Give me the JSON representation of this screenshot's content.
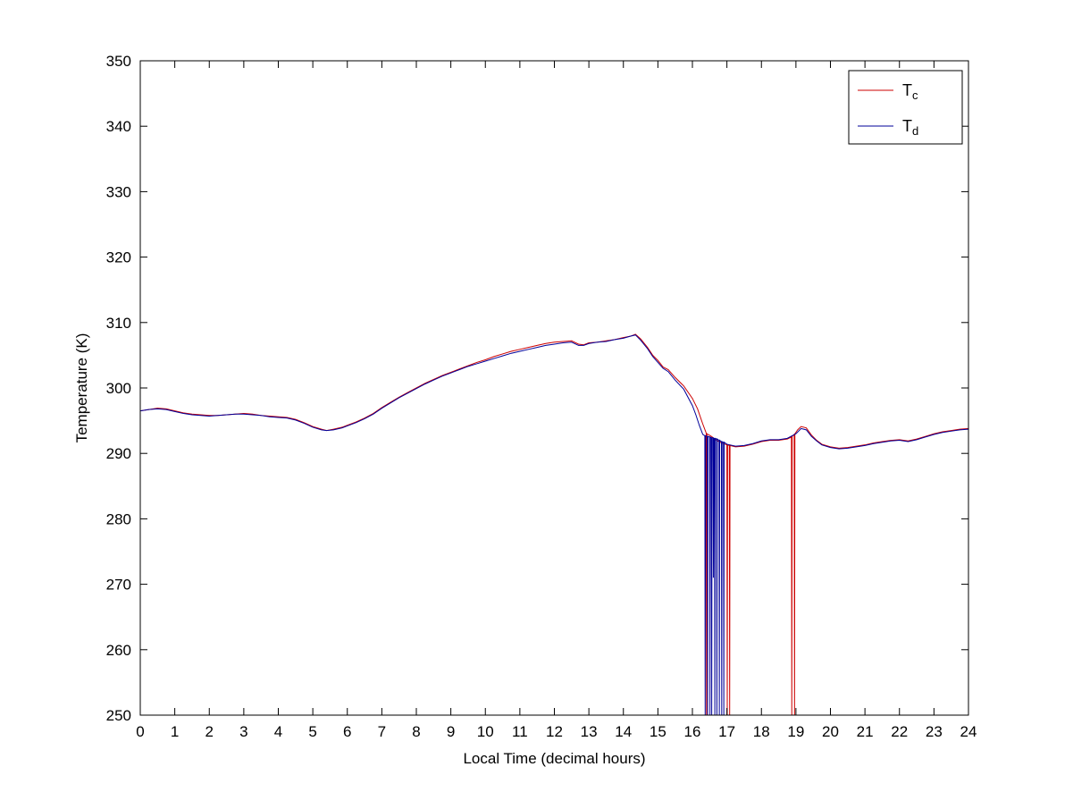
{
  "figure": {
    "background": "#ffffff"
  },
  "chart_data": {
    "type": "line",
    "title": "",
    "xlabel": "Local Time (decimal hours)",
    "ylabel": "Temperature (K)",
    "xlim": [
      0,
      24
    ],
    "ylim": [
      250,
      350
    ],
    "xticks": [
      0,
      1,
      2,
      3,
      4,
      5,
      6,
      7,
      8,
      9,
      10,
      11,
      12,
      13,
      14,
      15,
      16,
      17,
      18,
      19,
      20,
      21,
      22,
      23,
      24
    ],
    "yticks": [
      250,
      260,
      270,
      280,
      290,
      300,
      310,
      320,
      330,
      340,
      350
    ],
    "grid": false,
    "axis_color": "#000000",
    "legend": {
      "position": "top-right",
      "entries": [
        {
          "label_main": "T",
          "label_sub": "c",
          "color": "#cc0000"
        },
        {
          "label_main": "T",
          "label_sub": "d",
          "color": "#000099"
        }
      ]
    },
    "series": [
      {
        "name": "Tc",
        "color": "#cc0000",
        "points": [
          [
            0,
            296.5
          ],
          [
            0.25,
            296.7
          ],
          [
            0.5,
            296.9
          ],
          [
            0.75,
            296.8
          ],
          [
            1,
            296.5
          ],
          [
            1.25,
            296.2
          ],
          [
            1.5,
            296.0
          ],
          [
            1.75,
            295.9
          ],
          [
            2,
            295.8
          ],
          [
            2.25,
            295.8
          ],
          [
            2.5,
            295.9
          ],
          [
            2.75,
            296.0
          ],
          [
            3,
            296.1
          ],
          [
            3.25,
            296.0
          ],
          [
            3.5,
            295.8
          ],
          [
            3.75,
            295.7
          ],
          [
            4,
            295.6
          ],
          [
            4.25,
            295.5
          ],
          [
            4.5,
            295.2
          ],
          [
            4.75,
            294.7
          ],
          [
            5,
            294.1
          ],
          [
            5.25,
            293.7
          ],
          [
            5.4,
            293.5
          ],
          [
            5.6,
            293.7
          ],
          [
            5.85,
            294.0
          ],
          [
            6,
            294.3
          ],
          [
            6.25,
            294.8
          ],
          [
            6.5,
            295.4
          ],
          [
            6.75,
            296.1
          ],
          [
            7,
            297.0
          ],
          [
            7.25,
            297.8
          ],
          [
            7.5,
            298.6
          ],
          [
            7.75,
            299.3
          ],
          [
            8,
            300.0
          ],
          [
            8.25,
            300.7
          ],
          [
            8.5,
            301.3
          ],
          [
            8.75,
            301.9
          ],
          [
            9,
            302.4
          ],
          [
            9.25,
            302.9
          ],
          [
            9.5,
            303.4
          ],
          [
            9.75,
            303.9
          ],
          [
            10,
            304.3
          ],
          [
            10.25,
            304.8
          ],
          [
            10.5,
            305.2
          ],
          [
            10.75,
            305.6
          ],
          [
            11,
            305.9
          ],
          [
            11.25,
            306.2
          ],
          [
            11.5,
            306.5
          ],
          [
            11.75,
            306.8
          ],
          [
            12,
            307.0
          ],
          [
            12.25,
            307.1
          ],
          [
            12.5,
            307.2
          ],
          [
            12.7,
            306.7
          ],
          [
            12.85,
            306.6
          ],
          [
            13,
            306.9
          ],
          [
            13.25,
            307.0
          ],
          [
            13.5,
            307.2
          ],
          [
            13.75,
            307.4
          ],
          [
            14,
            307.7
          ],
          [
            14.2,
            307.9
          ],
          [
            14.35,
            308.2
          ],
          [
            14.5,
            307.5
          ],
          [
            14.7,
            306.2
          ],
          [
            14.85,
            305.0
          ],
          [
            15,
            304.2
          ],
          [
            15.15,
            303.2
          ],
          [
            15.3,
            302.8
          ],
          [
            15.5,
            301.6
          ],
          [
            15.75,
            300.3
          ],
          [
            16,
            298.4
          ],
          [
            16.15,
            296.8
          ],
          [
            16.3,
            294.5
          ],
          [
            16.4,
            293.1
          ],
          [
            16.41,
            250
          ],
          [
            16.42,
            293.0
          ],
          [
            16.55,
            292.6
          ],
          [
            16.7,
            292.0
          ],
          [
            16.85,
            291.6
          ],
          [
            17,
            291.3
          ],
          [
            17.01,
            250
          ],
          [
            17.02,
            291.3
          ],
          [
            17.07,
            291.2
          ],
          [
            17.08,
            250
          ],
          [
            17.09,
            291.2
          ],
          [
            17.25,
            291.0
          ],
          [
            17.5,
            291.1
          ],
          [
            17.75,
            291.4
          ],
          [
            18,
            291.8
          ],
          [
            18.25,
            292.0
          ],
          [
            18.5,
            292.0
          ],
          [
            18.75,
            292.2
          ],
          [
            18.87,
            292.5
          ],
          [
            18.88,
            250
          ],
          [
            18.89,
            292.6
          ],
          [
            18.95,
            292.9
          ],
          [
            18.96,
            250
          ],
          [
            18.97,
            293.0
          ],
          [
            19.05,
            293.6
          ],
          [
            19.15,
            294.1
          ],
          [
            19.3,
            293.9
          ],
          [
            19.45,
            292.8
          ],
          [
            19.6,
            292.0
          ],
          [
            19.75,
            291.4
          ],
          [
            20,
            291.0
          ],
          [
            20.25,
            290.8
          ],
          [
            20.5,
            290.9
          ],
          [
            20.75,
            291.1
          ],
          [
            21,
            291.3
          ],
          [
            21.25,
            291.6
          ],
          [
            21.5,
            291.8
          ],
          [
            21.75,
            292.0
          ],
          [
            22,
            292.1
          ],
          [
            22.25,
            291.9
          ],
          [
            22.5,
            292.2
          ],
          [
            22.75,
            292.6
          ],
          [
            23,
            293.0
          ],
          [
            23.25,
            293.3
          ],
          [
            23.5,
            293.5
          ],
          [
            23.75,
            293.7
          ],
          [
            24,
            293.8
          ]
        ]
      },
      {
        "name": "Td",
        "color": "#000099",
        "points": [
          [
            0,
            296.5
          ],
          [
            0.25,
            296.7
          ],
          [
            0.5,
            296.8
          ],
          [
            0.75,
            296.7
          ],
          [
            1,
            296.4
          ],
          [
            1.25,
            296.1
          ],
          [
            1.5,
            295.9
          ],
          [
            1.75,
            295.8
          ],
          [
            2,
            295.7
          ],
          [
            2.25,
            295.8
          ],
          [
            2.5,
            295.9
          ],
          [
            2.75,
            296.0
          ],
          [
            3,
            296.0
          ],
          [
            3.25,
            295.9
          ],
          [
            3.5,
            295.8
          ],
          [
            3.75,
            295.6
          ],
          [
            4,
            295.5
          ],
          [
            4.25,
            295.4
          ],
          [
            4.5,
            295.1
          ],
          [
            4.75,
            294.6
          ],
          [
            5,
            294.0
          ],
          [
            5.25,
            293.6
          ],
          [
            5.4,
            293.5
          ],
          [
            5.6,
            293.6
          ],
          [
            5.85,
            293.9
          ],
          [
            6,
            294.2
          ],
          [
            6.25,
            294.7
          ],
          [
            6.5,
            295.3
          ],
          [
            6.75,
            296.0
          ],
          [
            7,
            296.9
          ],
          [
            7.25,
            297.7
          ],
          [
            7.5,
            298.5
          ],
          [
            7.75,
            299.2
          ],
          [
            8,
            299.9
          ],
          [
            8.25,
            300.6
          ],
          [
            8.5,
            301.2
          ],
          [
            8.75,
            301.8
          ],
          [
            9,
            302.3
          ],
          [
            9.25,
            302.8
          ],
          [
            9.5,
            303.3
          ],
          [
            9.75,
            303.7
          ],
          [
            10,
            304.1
          ],
          [
            10.25,
            304.5
          ],
          [
            10.5,
            304.9
          ],
          [
            10.75,
            305.3
          ],
          [
            11,
            305.6
          ],
          [
            11.25,
            305.9
          ],
          [
            11.5,
            306.2
          ],
          [
            11.75,
            306.5
          ],
          [
            12,
            306.7
          ],
          [
            12.25,
            306.9
          ],
          [
            12.5,
            307.0
          ],
          [
            12.7,
            306.5
          ],
          [
            12.85,
            306.5
          ],
          [
            13,
            306.8
          ],
          [
            13.25,
            307.0
          ],
          [
            13.5,
            307.1
          ],
          [
            13.75,
            307.4
          ],
          [
            14,
            307.6
          ],
          [
            14.2,
            307.9
          ],
          [
            14.35,
            308.1
          ],
          [
            14.5,
            307.3
          ],
          [
            14.7,
            306.0
          ],
          [
            14.85,
            304.8
          ],
          [
            15,
            303.9
          ],
          [
            15.15,
            303.0
          ],
          [
            15.3,
            302.5
          ],
          [
            15.5,
            301.2
          ],
          [
            15.75,
            299.8
          ],
          [
            16,
            297.3
          ],
          [
            16.1,
            295.9
          ],
          [
            16.2,
            294.3
          ],
          [
            16.3,
            292.9
          ],
          [
            16.36,
            292.7
          ],
          [
            16.37,
            250
          ],
          [
            16.38,
            292.7
          ],
          [
            16.43,
            292.6
          ],
          [
            16.44,
            250
          ],
          [
            16.45,
            292.6
          ],
          [
            16.5,
            292.5
          ],
          [
            16.51,
            250
          ],
          [
            16.52,
            292.5
          ],
          [
            16.55,
            292.4
          ],
          [
            16.56,
            250
          ],
          [
            16.57,
            292.4
          ],
          [
            16.6,
            292.4
          ],
          [
            16.61,
            271
          ],
          [
            16.62,
            292.3
          ],
          [
            16.64,
            292.3
          ],
          [
            16.65,
            250
          ],
          [
            16.66,
            292.3
          ],
          [
            16.7,
            292.2
          ],
          [
            16.71,
            250
          ],
          [
            16.72,
            292.2
          ],
          [
            16.77,
            292.0
          ],
          [
            16.78,
            250
          ],
          [
            16.79,
            292.0
          ],
          [
            16.84,
            291.8
          ],
          [
            16.85,
            250
          ],
          [
            16.86,
            291.8
          ],
          [
            16.9,
            291.7
          ],
          [
            16.91,
            250
          ],
          [
            16.92,
            291.7
          ],
          [
            17,
            291.4
          ],
          [
            17.25,
            291.1
          ],
          [
            17.5,
            291.2
          ],
          [
            17.75,
            291.5
          ],
          [
            18,
            291.9
          ],
          [
            18.25,
            292.1
          ],
          [
            18.5,
            292.1
          ],
          [
            18.75,
            292.3
          ],
          [
            19,
            293.0
          ],
          [
            19.15,
            293.8
          ],
          [
            19.3,
            293.6
          ],
          [
            19.45,
            292.6
          ],
          [
            19.6,
            291.9
          ],
          [
            19.75,
            291.3
          ],
          [
            20,
            290.9
          ],
          [
            20.25,
            290.7
          ],
          [
            20.5,
            290.8
          ],
          [
            20.75,
            291.0
          ],
          [
            21,
            291.2
          ],
          [
            21.25,
            291.5
          ],
          [
            21.5,
            291.7
          ],
          [
            21.75,
            291.9
          ],
          [
            22,
            292.0
          ],
          [
            22.25,
            291.8
          ],
          [
            22.5,
            292.1
          ],
          [
            22.75,
            292.5
          ],
          [
            23,
            292.9
          ],
          [
            23.25,
            293.2
          ],
          [
            23.5,
            293.4
          ],
          [
            23.75,
            293.6
          ],
          [
            24,
            293.7
          ]
        ]
      }
    ]
  }
}
